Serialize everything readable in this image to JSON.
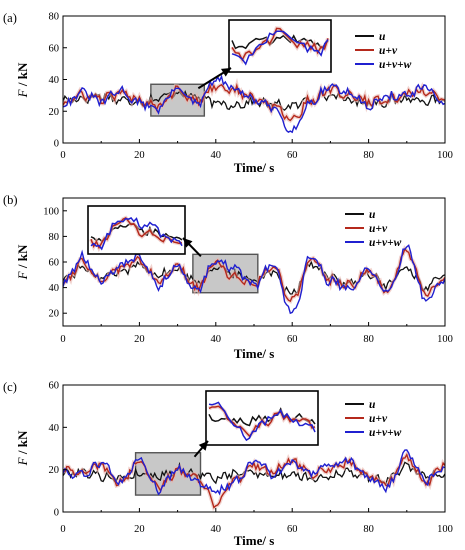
{
  "colors": {
    "u": "#111111",
    "uv": "#b5291c",
    "uvw": "#2020d0",
    "shade": "#e8b8b0",
    "box": "#c8c8c8"
  },
  "chart_data": [
    {
      "type": "line",
      "panel_label": "(a)",
      "xlabel": "Time/ s",
      "ylabel_italic": "F",
      "ylabel_unit": " / kN",
      "xlim": [
        0,
        100
      ],
      "ylim": [
        0,
        80
      ],
      "xticks": [
        0,
        20,
        40,
        60,
        80,
        100
      ],
      "yticks": [
        0,
        20,
        40,
        60,
        80
      ],
      "legend_position": "top-right",
      "legend": [
        "u",
        "u+v",
        "u+v+w"
      ],
      "zoom_box": {
        "x": [
          23,
          37
        ],
        "y": [
          17,
          37
        ]
      },
      "inset_placement": "upper-center",
      "x": [
        0,
        5,
        10,
        15,
        20,
        25,
        30,
        35,
        40,
        45,
        50,
        55,
        60,
        65,
        70,
        75,
        80,
        85,
        90,
        95,
        100
      ],
      "series": [
        {
          "name": "u",
          "values": [
            27,
            28,
            30,
            27,
            26,
            28,
            32,
            29,
            25,
            24,
            26,
            24,
            23,
            28,
            30,
            27,
            25,
            26,
            28,
            27,
            26
          ]
        },
        {
          "name": "u+v",
          "values": [
            25,
            30,
            28,
            31,
            27,
            24,
            34,
            26,
            36,
            33,
            28,
            23,
            15,
            27,
            34,
            30,
            26,
            27,
            31,
            33,
            27
          ]
        },
        {
          "name": "u+v+w",
          "values": [
            24,
            32,
            26,
            33,
            25,
            22,
            35,
            24,
            40,
            34,
            27,
            22,
            8,
            26,
            36,
            31,
            24,
            29,
            30,
            35,
            25
          ]
        }
      ]
    },
    {
      "type": "line",
      "panel_label": "(b)",
      "xlabel": "Time/ s",
      "ylabel_italic": "F",
      "ylabel_unit": " / kN",
      "xlim": [
        0,
        100
      ],
      "ylim": [
        10,
        110
      ],
      "xticks": [
        0,
        20,
        40,
        60,
        80,
        100
      ],
      "yticks": [
        20,
        40,
        60,
        80,
        100
      ],
      "legend_position": "top-right",
      "legend": [
        "u",
        "u+v",
        "u+v+w"
      ],
      "zoom_box": {
        "x": [
          34,
          51
        ],
        "y": [
          36,
          66
        ]
      },
      "inset_placement": "upper-left",
      "x": [
        0,
        5,
        10,
        15,
        20,
        25,
        30,
        35,
        40,
        45,
        50,
        55,
        60,
        65,
        70,
        75,
        80,
        85,
        90,
        95,
        100
      ],
      "series": [
        {
          "name": "u",
          "values": [
            46,
            55,
            48,
            52,
            58,
            50,
            54,
            45,
            56,
            50,
            46,
            52,
            36,
            58,
            48,
            44,
            50,
            42,
            56,
            40,
            50
          ]
        },
        {
          "name": "u+v",
          "values": [
            44,
            60,
            46,
            55,
            62,
            44,
            56,
            40,
            60,
            48,
            44,
            56,
            30,
            62,
            46,
            42,
            52,
            38,
            68,
            34,
            48
          ]
        },
        {
          "name": "u+v+w",
          "values": [
            42,
            64,
            45,
            57,
            64,
            42,
            57,
            38,
            62,
            54,
            42,
            58,
            20,
            64,
            45,
            40,
            53,
            36,
            71,
            30,
            47
          ]
        }
      ]
    },
    {
      "type": "line",
      "panel_label": "(c)",
      "xlabel": "Time/ s",
      "ylabel_italic": "F",
      "ylabel_unit": " / kN",
      "xlim": [
        0,
        100
      ],
      "ylim": [
        0,
        60
      ],
      "xticks": [
        0,
        20,
        40,
        60,
        80,
        100
      ],
      "yticks": [
        0,
        20,
        40,
        60
      ],
      "legend_position": "top-right",
      "legend": [
        "u",
        "u+v",
        "u+v+w"
      ],
      "zoom_box": {
        "x": [
          19,
          36
        ],
        "y": [
          8,
          28
        ]
      },
      "inset_placement": "upper-center",
      "x": [
        0,
        5,
        10,
        15,
        20,
        25,
        30,
        35,
        40,
        45,
        50,
        55,
        60,
        65,
        70,
        75,
        80,
        85,
        90,
        95,
        100
      ],
      "series": [
        {
          "name": "u",
          "values": [
            18,
            19,
            17,
            16,
            18,
            17,
            20,
            18,
            16,
            18,
            19,
            17,
            18,
            16,
            17,
            19,
            16,
            15,
            22,
            17,
            18
          ]
        },
        {
          "name": "u+v",
          "values": [
            20,
            18,
            22,
            14,
            24,
            12,
            19,
            16,
            4,
            15,
            22,
            19,
            24,
            18,
            21,
            23,
            17,
            13,
            26,
            14,
            22
          ]
        },
        {
          "name": "u+v+w",
          "values": [
            19,
            17,
            23,
            13,
            25,
            11,
            20,
            15,
            9,
            14,
            24,
            18,
            23,
            19,
            22,
            24,
            16,
            12,
            28,
            15,
            21
          ]
        }
      ]
    }
  ]
}
